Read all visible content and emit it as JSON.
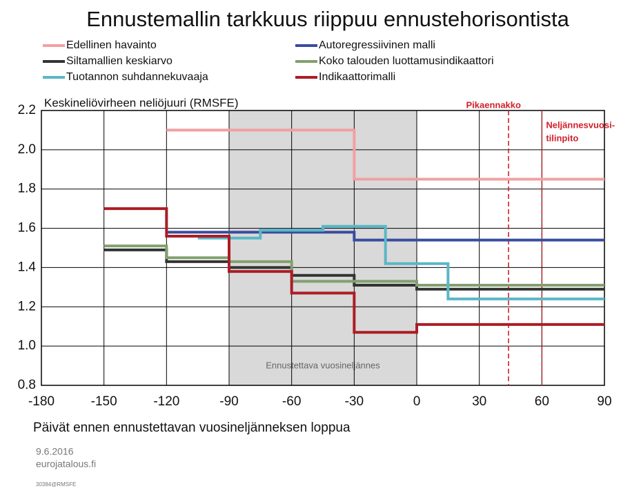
{
  "chart_data": {
    "type": "step",
    "title": "Ennustemallin tarkkuus riippuu ennustehorisontista",
    "ylabel": "Keskineliövirheen neliöjuuri (RMSFE)",
    "xlabel": "Päivät ennen ennustettavan vuosineljänneksen loppua",
    "xlim": [
      -180,
      90
    ],
    "xticks": [
      -180,
      -150,
      -120,
      -90,
      -60,
      -30,
      0,
      30,
      60,
      90
    ],
    "ylim": [
      0.8,
      2.2
    ],
    "yticks": [
      0.8,
      {
        "value": 1.0,
        "label": "1.0"
      },
      1.2,
      1.4,
      1.6,
      1.8,
      {
        "value": 2.0,
        "label": "2.0"
      },
      2.2
    ],
    "grid": true,
    "shade": {
      "x": [
        -90,
        0
      ],
      "label": "Ennustettava vuosineljännes"
    },
    "vlines": [
      {
        "x": 44,
        "label": "Pikaennakko"
      },
      {
        "x": 60,
        "label": [
          "Neljännesvuosi-",
          "tilinpito"
        ]
      }
    ],
    "series": [
      {
        "name": "Edellinen havainto",
        "color": "#f2a0a0",
        "x": [
          -120,
          -30,
          90
        ],
        "values": [
          2.1,
          1.85,
          1.85
        ]
      },
      {
        "name": "Autoregressiivinen malli",
        "color": "#3a4c9e",
        "x": [
          -120,
          -30,
          90
        ],
        "values": [
          1.58,
          1.54,
          1.54
        ]
      },
      {
        "name": "Siltamallien keskiarvo",
        "color": "#333333",
        "x": [
          -150,
          -120,
          -90,
          -60,
          -30,
          0,
          90
        ],
        "values": [
          1.49,
          1.43,
          1.4,
          1.36,
          1.31,
          1.29,
          1.29
        ]
      },
      {
        "name": "Koko talouden luottamusindikaattori",
        "color": "#82a06e",
        "x": [
          -150,
          -120,
          -90,
          -60,
          -30,
          0,
          90
        ],
        "values": [
          1.51,
          1.45,
          1.43,
          1.33,
          1.33,
          1.31,
          1.31
        ]
      },
      {
        "name": "Tuotannon suhdannekuvaaja",
        "color": "#5ab7c6",
        "x": [
          -105,
          -75,
          -45,
          -15,
          15,
          90
        ],
        "values": [
          1.55,
          1.59,
          1.61,
          1.42,
          1.24,
          1.24
        ]
      },
      {
        "name": "Indikaattorimalli",
        "color": "#ad1c25",
        "x": [
          -150,
          -120,
          -90,
          -60,
          -30,
          0,
          90
        ],
        "values": [
          1.7,
          1.56,
          1.38,
          1.27,
          1.07,
          1.11,
          1.11
        ]
      }
    ]
  },
  "footer": {
    "date": "9.6.2016",
    "source": "eurojatalous.fi",
    "code": "30384@RMSFE"
  }
}
